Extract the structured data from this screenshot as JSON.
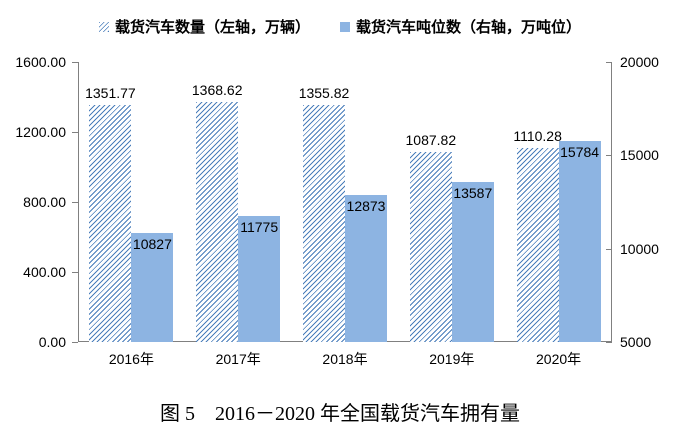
{
  "figure": {
    "caption": "图 5　2016－2020 年全国载货汽车拥有量"
  },
  "legend": [
    {
      "label": "载货汽车数量（左轴，万辆）",
      "swatch": "hatched"
    },
    {
      "label": "载货汽车吨位数（右轴，万吨位）",
      "swatch": "solid"
    }
  ],
  "colors": {
    "bar_fill": "#8DB4E2",
    "hatch_line": "#4A7EBB",
    "axis_line": "#808080",
    "label_text": "#000000"
  },
  "chart_data": {
    "type": "bar",
    "title": "图 5　2016－2020 年全国载货汽车拥有量",
    "categories": [
      "2016年",
      "2017年",
      "2018年",
      "2019年",
      "2020年"
    ],
    "series": [
      {
        "name": "载货汽车数量（左轴，万辆）",
        "axis": "left",
        "style": "hatched",
        "values": [
          1351.77,
          1368.62,
          1355.82,
          1087.82,
          1110.28
        ],
        "labels": [
          "1351.77",
          "1368.62",
          "1355.82",
          "1087.82",
          "1110.28"
        ],
        "label_position": "outside-top"
      },
      {
        "name": "载货汽车吨位数（右轴，万吨位）",
        "axis": "right",
        "style": "solid",
        "values": [
          10827,
          11775,
          12873,
          13587,
          15784
        ],
        "labels": [
          "10827",
          "11775",
          "12873",
          "13587",
          "15784"
        ],
        "label_position": "inside-top"
      }
    ],
    "left_axis": {
      "min": 0,
      "max": 1600,
      "tick_labels": [
        "1600.00",
        "1200.00",
        "800.00",
        "400.00",
        "0.00"
      ]
    },
    "right_axis": {
      "min": 5000,
      "max": 20000,
      "tick_labels": [
        "20000",
        "15000",
        "10000",
        "5000"
      ]
    },
    "grid": false,
    "legend_position": "top"
  }
}
